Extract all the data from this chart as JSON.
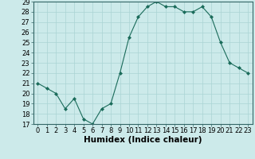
{
  "x": [
    0,
    1,
    2,
    3,
    4,
    5,
    6,
    7,
    8,
    9,
    10,
    11,
    12,
    13,
    14,
    15,
    16,
    17,
    18,
    19,
    20,
    21,
    22,
    23
  ],
  "y": [
    21,
    20.5,
    20,
    18.5,
    19.5,
    17.5,
    17,
    18.5,
    19,
    22,
    25.5,
    27.5,
    28.5,
    29,
    28.5,
    28.5,
    28,
    28,
    28.5,
    27.5,
    25,
    23,
    22.5,
    22
  ],
  "line_color": "#1a6b5a",
  "marker": "D",
  "marker_size": 2.0,
  "bg_color": "#cceaea",
  "grid_color": "#aad4d4",
  "xlabel": "Humidex (Indice chaleur)",
  "ylim": [
    17,
    29
  ],
  "xlim": [
    -0.5,
    23.5
  ],
  "yticks": [
    17,
    18,
    19,
    20,
    21,
    22,
    23,
    24,
    25,
    26,
    27,
    28,
    29
  ],
  "xtick_labels": [
    "0",
    "1",
    "2",
    "3",
    "4",
    "5",
    "6",
    "7",
    "8",
    "9",
    "10",
    "11",
    "12",
    "13",
    "14",
    "15",
    "16",
    "17",
    "18",
    "19",
    "20",
    "21",
    "22",
    "23"
  ],
  "tick_fontsize": 6.0,
  "xlabel_fontsize": 7.5
}
